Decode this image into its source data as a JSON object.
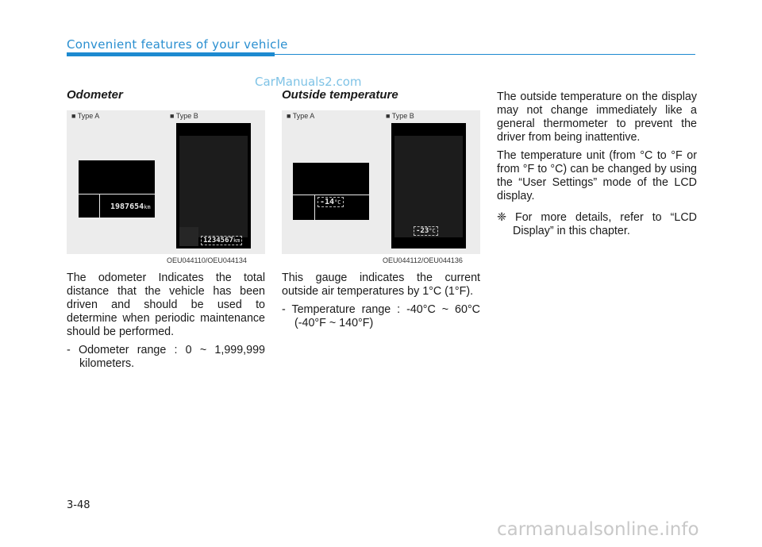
{
  "header": {
    "title": "Convenient features of your vehicle"
  },
  "watermark_top": "CarManuals2.com",
  "watermark_bottom": "carmanualsonline.info",
  "page_number": "3-48",
  "odometer": {
    "title": "Odometer",
    "type_a_label": "■ Type A",
    "type_b_label": "■ Type B",
    "type_a_value": "1987654",
    "type_b_value": "1234567",
    "unit": "km",
    "figure_code": "OEU044110/OEU044134",
    "body": "The odometer Indicates the total distance that the vehicle has been driven and should be used to determine when periodic maintenance should be performed.",
    "range": "- Odometer range : 0 ~ 1,999,999 kilometers."
  },
  "outside_temperature": {
    "title": "Outside temperature",
    "type_a_label": "■ Type A",
    "type_b_label": "■ Type B",
    "type_a_value": "-14",
    "type_b_value": "-23",
    "unit": "°C",
    "figure_code": "OEU044112/OEU044136",
    "body": "This gauge indicates the current outside air temperatures by 1°C (1°F).",
    "range": "- Temperature range : -40°C ~ 60°C (-40°F ~ 140°F)"
  },
  "right_column": {
    "para1": "The outside temperature on the display may not change immediately like a general thermometer to prevent the driver from being inattentive.",
    "para2": "The temperature unit (from °C to °F or from °F to °C) can be changed by using the “User Settings” mode of the LCD display.",
    "note": "❈ For more details, refer to “LCD Display” in this chapter."
  }
}
